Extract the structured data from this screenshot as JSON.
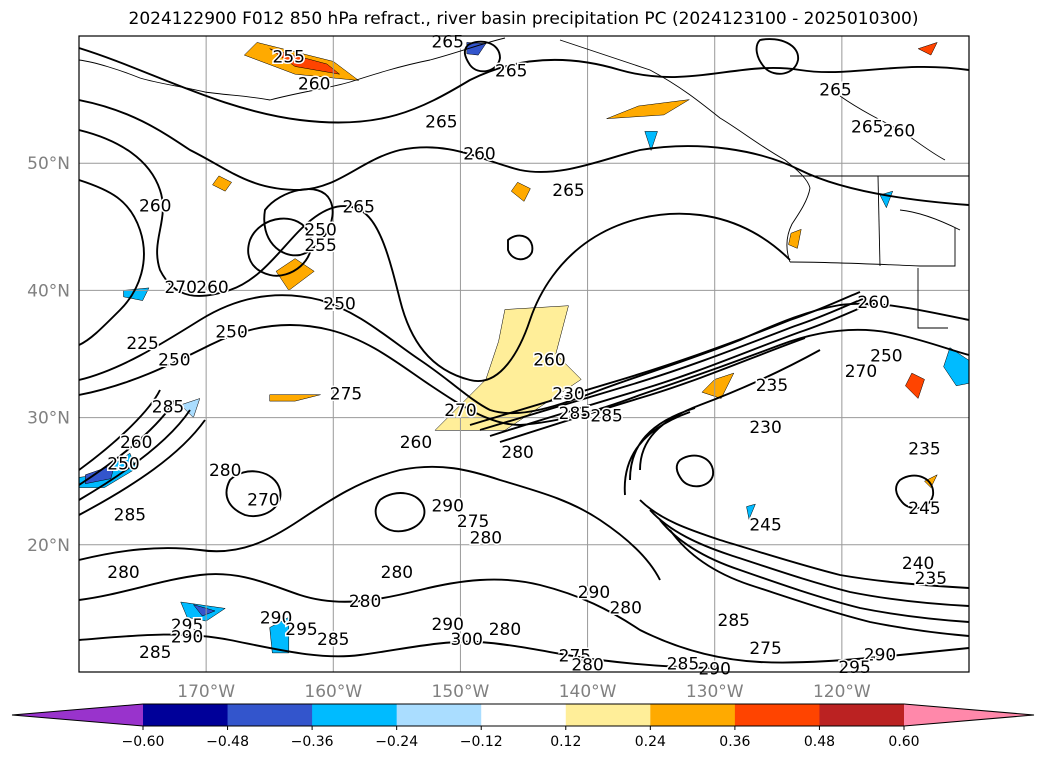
{
  "title": "2024122900 F012 850 hPa refract., river basin precipitation PC (2024123100 - 2025010300)",
  "map": {
    "lon_range": [
      -180,
      -110
    ],
    "lat_range": [
      10,
      60
    ],
    "lat_ticks": [
      {
        "value": 50,
        "label": "50°N"
      },
      {
        "value": 40,
        "label": "40°N"
      },
      {
        "value": 30,
        "label": "30°N"
      },
      {
        "value": 20,
        "label": "20°N"
      }
    ],
    "lon_ticks": [
      {
        "value": -170,
        "label": "170°W"
      },
      {
        "value": -160,
        "label": "160°W"
      },
      {
        "value": -150,
        "label": "150°W"
      },
      {
        "value": -140,
        "label": "140°W"
      },
      {
        "value": -130,
        "label": "130°W"
      },
      {
        "value": -120,
        "label": "120°W"
      }
    ],
    "tick_label_color": "#808080",
    "grid": true,
    "contour_line_color": "#000000"
  },
  "contour_labels": [
    {
      "text": "265",
      "lon": -151,
      "lat": 59.5
    },
    {
      "text": "255",
      "lon": -163.5,
      "lat": 58.3
    },
    {
      "text": "265",
      "lon": -146,
      "lat": 57.2
    },
    {
      "text": "260",
      "lon": -161.5,
      "lat": 56.2
    },
    {
      "text": "265",
      "lon": -120.5,
      "lat": 55.7
    },
    {
      "text": "265",
      "lon": -151.5,
      "lat": 53.2
    },
    {
      "text": "265",
      "lon": -118,
      "lat": 52.8
    },
    {
      "text": "260",
      "lon": -115.5,
      "lat": 52.5
    },
    {
      "text": "260",
      "lon": -148.5,
      "lat": 50.7
    },
    {
      "text": "265",
      "lon": -141.5,
      "lat": 47.8
    },
    {
      "text": "260",
      "lon": -174,
      "lat": 46.6
    },
    {
      "text": "265",
      "lon": -158,
      "lat": 46.5
    },
    {
      "text": "250",
      "lon": -161,
      "lat": 44.7
    },
    {
      "text": "255",
      "lon": -161,
      "lat": 43.5
    },
    {
      "text": "270",
      "lon": -172,
      "lat": 40.2
    },
    {
      "text": "260",
      "lon": -169.5,
      "lat": 40.2
    },
    {
      "text": "250",
      "lon": -159.5,
      "lat": 38.9
    },
    {
      "text": "260",
      "lon": -117.5,
      "lat": 39.0
    },
    {
      "text": "250",
      "lon": -168,
      "lat": 36.7
    },
    {
      "text": "225",
      "lon": -175,
      "lat": 35.8
    },
    {
      "text": "250",
      "lon": -172.5,
      "lat": 34.5
    },
    {
      "text": "260",
      "lon": -143,
      "lat": 34.5
    },
    {
      "text": "250",
      "lon": -116.5,
      "lat": 34.8
    },
    {
      "text": "270",
      "lon": -118.5,
      "lat": 33.6
    },
    {
      "text": "235",
      "lon": -125.5,
      "lat": 32.5
    },
    {
      "text": "275",
      "lon": -159,
      "lat": 31.8
    },
    {
      "text": "285",
      "lon": -173,
      "lat": 30.8
    },
    {
      "text": "230",
      "lon": -141.5,
      "lat": 31.8
    },
    {
      "text": "285",
      "lon": -141,
      "lat": 30.3
    },
    {
      "text": "270",
      "lon": -150,
      "lat": 30.5
    },
    {
      "text": "285",
      "lon": -138.5,
      "lat": 30.1
    },
    {
      "text": "230",
      "lon": -126,
      "lat": 29.2
    },
    {
      "text": "260",
      "lon": -175.5,
      "lat": 28.0
    },
    {
      "text": "260",
      "lon": -153.5,
      "lat": 28.0
    },
    {
      "text": "280",
      "lon": -145.5,
      "lat": 27.2
    },
    {
      "text": "235",
      "lon": -113.5,
      "lat": 27.5
    },
    {
      "text": "250",
      "lon": -176.5,
      "lat": 26.3
    },
    {
      "text": "280",
      "lon": -168.5,
      "lat": 25.8
    },
    {
      "text": "245",
      "lon": -113.5,
      "lat": 22.8
    },
    {
      "text": "290",
      "lon": -151,
      "lat": 23.0
    },
    {
      "text": "270",
      "lon": -165.5,
      "lat": 23.5
    },
    {
      "text": "285",
      "lon": -176,
      "lat": 22.3
    },
    {
      "text": "245",
      "lon": -126,
      "lat": 21.5
    },
    {
      "text": "275",
      "lon": -149,
      "lat": 21.8
    },
    {
      "text": "280",
      "lon": -148,
      "lat": 20.5
    },
    {
      "text": "280",
      "lon": -155,
      "lat": 17.8
    },
    {
      "text": "280",
      "lon": -176.5,
      "lat": 17.8
    },
    {
      "text": "240",
      "lon": -114,
      "lat": 18.5
    },
    {
      "text": "235",
      "lon": -113,
      "lat": 17.3
    },
    {
      "text": "290",
      "lon": -139.5,
      "lat": 16.2
    },
    {
      "text": "280",
      "lon": -157.5,
      "lat": 15.5
    },
    {
      "text": "280",
      "lon": -137,
      "lat": 15.0
    },
    {
      "text": "290",
      "lon": -164.5,
      "lat": 14.2
    },
    {
      "text": "295",
      "lon": -171.5,
      "lat": 13.6
    },
    {
      "text": "295",
      "lon": -162.5,
      "lat": 13.3
    },
    {
      "text": "290",
      "lon": -151,
      "lat": 13.7
    },
    {
      "text": "285",
      "lon": -128.5,
      "lat": 14.0
    },
    {
      "text": "290",
      "lon": -171.5,
      "lat": 12.7
    },
    {
      "text": "285",
      "lon": -160,
      "lat": 12.5
    },
    {
      "text": "300",
      "lon": -149.5,
      "lat": 12.5
    },
    {
      "text": "280",
      "lon": -146.5,
      "lat": 13.3
    },
    {
      "text": "275",
      "lon": -126,
      "lat": 11.8
    },
    {
      "text": "285",
      "lon": -174,
      "lat": 11.5
    },
    {
      "text": "275",
      "lon": -141,
      "lat": 11.2
    },
    {
      "text": "290",
      "lon": -117,
      "lat": 11.3
    },
    {
      "text": "280",
      "lon": -140,
      "lat": 10.5
    },
    {
      "text": "285",
      "lon": -132.5,
      "lat": 10.6
    },
    {
      "text": "290",
      "lon": -130,
      "lat": 10.2
    },
    {
      "text": "295",
      "lon": -119,
      "lat": 10.3
    }
  ],
  "colorbar": {
    "boundaries": [
      -0.72,
      -0.6,
      -0.48,
      -0.36,
      -0.24,
      -0.12,
      0.12,
      0.24,
      0.36,
      0.48,
      0.6,
      0.72
    ],
    "tick_labels": [
      "−0.60",
      "−0.48",
      "−0.36",
      "−0.24",
      "−0.12",
      "0.12",
      "0.24",
      "0.36",
      "0.48",
      "0.60"
    ],
    "colors": [
      "#9933cc",
      "#000099",
      "#3355cc",
      "#00bbff",
      "#aaddff",
      "#ffffff",
      "#ffee99",
      "#ffaa00",
      "#ff4400",
      "#bb2222",
      "#ff88aa"
    ],
    "extend": "both"
  },
  "fills": [
    {
      "color": "#ffaa00",
      "points": [
        [
          -146,
          38
        ],
        [
          -142,
          38.5
        ],
        [
          -143,
          36
        ],
        [
          -141.5,
          33
        ],
        [
          -147,
          29.5
        ],
        [
          -151,
          29.5
        ],
        [
          -147,
          33
        ],
        [
          -146.5,
          36
        ]
      ]
    },
    {
      "color": "#ff4400",
      "points": [
        [
          -145.8,
          37.5
        ],
        [
          -144.5,
          36.2
        ],
        [
          -143,
          33
        ],
        [
          -147,
          30.2
        ],
        [
          -149.5,
          30
        ],
        [
          -146.5,
          33
        ],
        [
          -146.5,
          36
        ]
      ]
    },
    {
      "color": "#ffee99",
      "points": [
        [
          -146.5,
          38.5
        ],
        [
          -141.5,
          38.8
        ],
        [
          -142.5,
          35
        ],
        [
          -140.5,
          33
        ],
        [
          -146.5,
          29
        ],
        [
          -152,
          29
        ],
        [
          -148,
          33
        ],
        [
          -147,
          36
        ]
      ]
    },
    {
      "color": "#ffaa00",
      "points": [
        [
          -166,
          59.5
        ],
        [
          -160,
          58
        ],
        [
          -158,
          56.5
        ],
        [
          -163,
          57
        ],
        [
          -167,
          58.5
        ]
      ]
    },
    {
      "color": "#ff4400",
      "points": [
        [
          -165,
          59
        ],
        [
          -160.5,
          57.8
        ],
        [
          -159.5,
          57
        ],
        [
          -163,
          57.6
        ]
      ]
    },
    {
      "color": "#ffaa00",
      "points": [
        [
          -136,
          54.5
        ],
        [
          -132,
          55
        ],
        [
          -134,
          53.8
        ],
        [
          -138.5,
          53.5
        ]
      ]
    },
    {
      "color": "#ffaa00",
      "points": [
        [
          -163,
          42.5
        ],
        [
          -161.5,
          41.5
        ],
        [
          -163.5,
          40
        ],
        [
          -164.5,
          41.5
        ]
      ]
    },
    {
      "color": "#ffaa00",
      "points": [
        [
          -165,
          31.8
        ],
        [
          -161,
          31.8
        ],
        [
          -163,
          31.3
        ],
        [
          -165,
          31.3
        ]
      ]
    },
    {
      "color": "#ff4400",
      "points": [
        [
          -114.5,
          33.5
        ],
        [
          -113.5,
          33
        ],
        [
          -114,
          31.5
        ],
        [
          -115,
          32.5
        ]
      ]
    },
    {
      "color": "#ffaa00",
      "points": [
        [
          -130,
          33
        ],
        [
          -128.5,
          33.5
        ],
        [
          -129.5,
          31.5
        ],
        [
          -131,
          32
        ]
      ]
    },
    {
      "color": "#ff4400",
      "points": [
        [
          -114,
          59
        ],
        [
          -112.5,
          59.5
        ],
        [
          -113,
          58.5
        ]
      ]
    },
    {
      "color": "#ffaa00",
      "points": [
        [
          -169,
          49
        ],
        [
          -168,
          48.5
        ],
        [
          -168.5,
          47.8
        ],
        [
          -169.5,
          48.3
        ]
      ]
    },
    {
      "color": "#ffaa00",
      "points": [
        [
          -145.5,
          48.5
        ],
        [
          -144.5,
          48
        ],
        [
          -145,
          47
        ],
        [
          -146,
          47.8
        ]
      ]
    },
    {
      "color": "#00bbff",
      "points": [
        [
          -178.5,
          25.5
        ],
        [
          -176,
          27.2
        ],
        [
          -175.5,
          26
        ],
        [
          -178,
          24.5
        ],
        [
          -180,
          24.5
        ],
        [
          -180,
          25.3
        ]
      ]
    },
    {
      "color": "#3355cc",
      "points": [
        [
          -179.5,
          25.5
        ],
        [
          -177.2,
          26.3
        ],
        [
          -177.5,
          25.2
        ],
        [
          -179.5,
          24.8
        ]
      ]
    },
    {
      "color": "#00bbff",
      "points": [
        [
          -172,
          15.5
        ],
        [
          -168.5,
          15
        ],
        [
          -170,
          14
        ],
        [
          -171.5,
          14.3
        ]
      ]
    },
    {
      "color": "#3355cc",
      "points": [
        [
          -171,
          15.3
        ],
        [
          -169.3,
          14.8
        ],
        [
          -170.3,
          14.4
        ]
      ]
    },
    {
      "color": "#00bbff",
      "points": [
        [
          -110,
          34.5
        ],
        [
          -111.5,
          35.5
        ],
        [
          -112,
          34
        ],
        [
          -111,
          32.5
        ],
        [
          -110,
          32.7
        ]
      ]
    },
    {
      "color": "#3355cc",
      "points": [
        [
          -149.5,
          59.5
        ],
        [
          -148,
          59.4
        ],
        [
          -148.6,
          58.5
        ],
        [
          -149.5,
          58.6
        ]
      ]
    },
    {
      "color": "#00bbff",
      "points": [
        [
          -165,
          13.5
        ],
        [
          -163.5,
          14.3
        ],
        [
          -163.5,
          11.5
        ],
        [
          -164.8,
          11.5
        ]
      ]
    },
    {
      "color": "#00bbff",
      "points": [
        [
          -176.5,
          40
        ],
        [
          -174.5,
          40.2
        ],
        [
          -175,
          39.2
        ],
        [
          -176.5,
          39.5
        ]
      ]
    },
    {
      "color": "#00bbff",
      "points": [
        [
          -135.5,
          52.5
        ],
        [
          -134.5,
          52.5
        ],
        [
          -135,
          51
        ]
      ]
    },
    {
      "color": "#00bbff",
      "points": [
        [
          -127.5,
          23
        ],
        [
          -126.8,
          23.2
        ],
        [
          -127.3,
          22
        ]
      ]
    },
    {
      "color": "#00bbff",
      "points": [
        [
          -117,
          47.5
        ],
        [
          -116,
          47.8
        ],
        [
          -116.5,
          46.5
        ]
      ]
    },
    {
      "color": "#aaddff",
      "points": [
        [
          -172,
          31
        ],
        [
          -170.5,
          31.5
        ],
        [
          -171,
          30
        ]
      ]
    },
    {
      "color": "#ffaa00",
      "points": [
        [
          -113.5,
          25
        ],
        [
          -112.5,
          25.5
        ],
        [
          -113,
          24.5
        ]
      ]
    },
    {
      "color": "#ffaa00",
      "points": [
        [
          -139,
          12
        ]
      ]
    },
    {
      "color": "#ffaa00",
      "points": [
        [
          -124,
          44.5
        ],
        [
          -123.2,
          44.8
        ],
        [
          -123.5,
          43.3
        ],
        [
          -124.2,
          43.6
        ]
      ]
    }
  ]
}
